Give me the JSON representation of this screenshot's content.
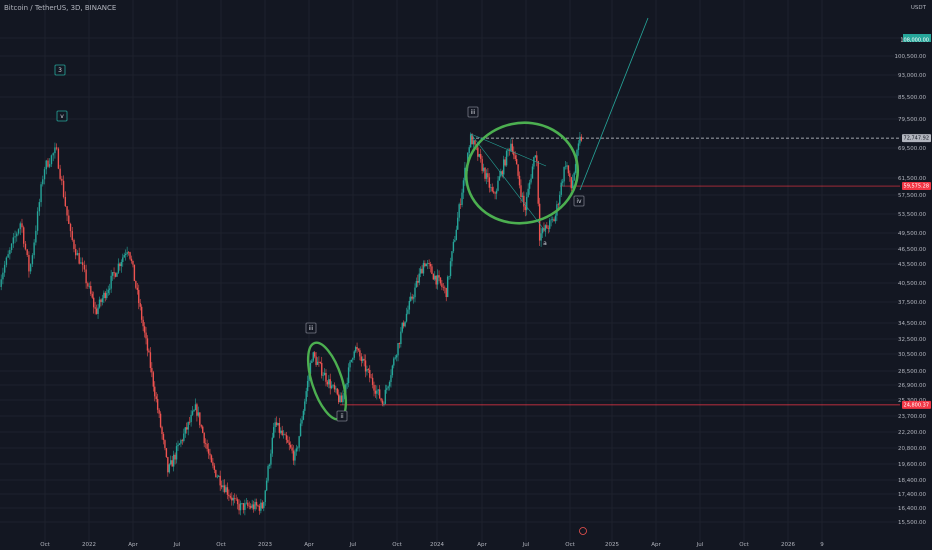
{
  "header": {
    "title": "Bitcoin / TetherUS, 3D, BINANCE"
  },
  "price_axis": {
    "currency": "USDT",
    "top_badge": "108,000.00",
    "ticks": [
      "108,000.00",
      "100,500.00",
      "93,000.00",
      "85,500.00",
      "79,500.00",
      "69,500.00",
      "61,500.00",
      "57,500.00",
      "53,500.00",
      "49,500.00",
      "46,500.00",
      "43,500.00",
      "40,500.00",
      "37,500.00",
      "34,500.00",
      "32,500.00",
      "30,500.00",
      "28,500.00",
      "26,900.00",
      "25,300.00",
      "23,700.00",
      "22,200.00",
      "20,800.00",
      "19,600.00",
      "18,400.00",
      "17,400.00",
      "16,400.00",
      "15,500.00"
    ],
    "current_price_label": "72,747.92",
    "support_label": "59,575.28",
    "lower_support_label": "24,800.37"
  },
  "time_axis": {
    "labels": [
      "Oct",
      "2022",
      "Apr",
      "Jul",
      "Oct",
      "2023",
      "Apr",
      "Jul",
      "Oct",
      "2024",
      "Apr",
      "Jul",
      "Oct",
      "2025",
      "Apr",
      "Jul",
      "Oct",
      "2026",
      "9"
    ]
  },
  "waves": [
    {
      "label": "3",
      "boxed": true,
      "color": "#26a69a"
    },
    {
      "label": "v",
      "boxed": true,
      "color": "#26a69a"
    },
    {
      "label": "ii",
      "boxed": true,
      "color": "#787b86"
    },
    {
      "label": "iii",
      "boxed": true,
      "color": "#787b86"
    },
    {
      "label": "iii",
      "boxed": true,
      "color": "#787b86"
    },
    {
      "label": "iv",
      "boxed": true,
      "color": "#787b86"
    },
    {
      "label": "a",
      "boxed": false,
      "color": "#787b86"
    }
  ],
  "colors": {
    "background": "#131722",
    "up": "#26a69a",
    "down": "#ef5350",
    "highlight": "#4caf50",
    "level_red": "#f23645"
  },
  "chart_data": {
    "type": "candlestick",
    "symbol": "Bitcoin / TetherUS",
    "interval": "3D",
    "exchange": "BINANCE",
    "y_scale": "log",
    "ylim": [
      15500,
      113000
    ],
    "x_range": [
      "2021-08",
      "2026-10"
    ],
    "price_path": [
      [
        "2021-08-01",
        40000
      ],
      [
        "2021-09-10",
        52000
      ],
      [
        "2021-09-25",
        42000
      ],
      [
        "2021-10-20",
        64000
      ],
      [
        "2021-11-10",
        69000
      ],
      [
        "2021-12-05",
        49000
      ],
      [
        "2022-01-20",
        36000
      ],
      [
        "2022-03-28",
        47000
      ],
      [
        "2022-05-10",
        30000
      ],
      [
        "2022-06-18",
        19000
      ],
      [
        "2022-08-15",
        24500
      ],
      [
        "2022-09-15",
        19500
      ],
      [
        "2022-11-09",
        16500
      ],
      [
        "2022-12-30",
        16500
      ],
      [
        "2023-01-25",
        23000
      ],
      [
        "2023-03-10",
        20000
      ],
      [
        "2023-04-14",
        30500
      ],
      [
        "2023-06-15",
        25000
      ],
      [
        "2023-07-13",
        31500
      ],
      [
        "2023-09-11",
        25000
      ],
      [
        "2023-10-25",
        34500
      ],
      [
        "2023-12-08",
        44000
      ],
      [
        "2024-01-23",
        39000
      ],
      [
        "2024-03-14",
        73000
      ],
      [
        "2024-05-01",
        57000
      ],
      [
        "2024-06-07",
        71500
      ],
      [
        "2024-07-05",
        54000
      ],
      [
        "2024-07-29",
        70000
      ],
      [
        "2024-08-05",
        49000
      ],
      [
        "2024-09-06",
        52500
      ],
      [
        "2024-09-29",
        66000
      ],
      [
        "2024-10-10",
        58900
      ],
      [
        "2024-10-29",
        72748
      ]
    ],
    "levels": [
      {
        "price": 72747.92,
        "style": "dashed"
      },
      {
        "price": 59575.28,
        "style": "solid"
      },
      {
        "price": 24800.37,
        "style": "solid"
      }
    ]
  }
}
